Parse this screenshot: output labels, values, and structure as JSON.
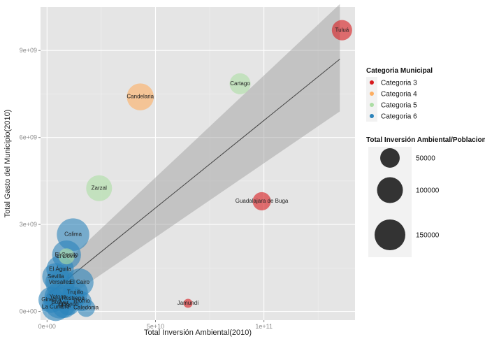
{
  "chart_data": {
    "type": "scatter",
    "xlabel": "Total Inversión Ambiental(2010)",
    "ylabel": "Total Gasto del Municipio(2010)",
    "xlim": [
      -3000000000.0,
      142000000000.0
    ],
    "ylim": [
      -300000000.0,
      10500000000.0
    ],
    "x_ticks": [
      0,
      50000000000.0,
      100000000000.0
    ],
    "x_tick_labels": [
      "0e+00",
      "5e+10",
      "1e+11"
    ],
    "y_ticks": [
      0,
      3000000000.0,
      6000000000.0,
      9000000000.0
    ],
    "y_tick_labels": [
      "0e+00",
      "3e+09",
      "6e+09",
      "9e+09"
    ],
    "grid": true,
    "color_legend": {
      "title": "Categoria Municipal",
      "entries": [
        {
          "label": "Categoria 3",
          "color": "#d7191c"
        },
        {
          "label": "Categoria 4",
          "color": "#fdae61"
        },
        {
          "label": "Categoria 5",
          "color": "#abdda4"
        },
        {
          "label": "Categoria 6",
          "color": "#2b83ba"
        }
      ]
    },
    "size_legend": {
      "title": "Total Inversión Ambiental/Poblacion",
      "entries": [
        {
          "label": "50000",
          "value": 50000
        },
        {
          "label": "100000",
          "value": 100000
        },
        {
          "label": "150000",
          "value": 150000
        }
      ]
    },
    "trend": {
      "x": [
        0,
        135000000000.0
      ],
      "y": [
        550000000.0,
        8700000000.0
      ],
      "ci_lower": [
        0,
        6900000000.0
      ],
      "ci_upper": [
        1100000000.0,
        10600000000.0
      ]
    },
    "points": [
      {
        "label": "Tuluá",
        "x": 136000000000.0,
        "y": 9700000000.0,
        "cat": 3,
        "size": 55000
      },
      {
        "label": "Cartago",
        "x": 89000000000.0,
        "y": 7850000000.0,
        "cat": 5,
        "size": 60000
      },
      {
        "label": "Candelaria",
        "x": 43000000000.0,
        "y": 7400000000.0,
        "cat": 4,
        "size": 110000
      },
      {
        "label": "Zarzal",
        "x": 24000000000.0,
        "y": 4250000000.0,
        "cat": 5,
        "size": 100000
      },
      {
        "label": "Guadalajara de Buga",
        "x": 99000000000.0,
        "y": 3800000000.0,
        "cat": 3,
        "size": 42000
      },
      {
        "label": "Jamundí",
        "x": 65000000000.0,
        "y": 280000000.0,
        "cat": 3,
        "size": 5000
      },
      {
        "label": "Calima",
        "x": 12000000000.0,
        "y": 2650000000.0,
        "cat": 6,
        "size": 170000
      },
      {
        "label": "El Cerrito",
        "x": 9000000000.0,
        "y": 1950000000.0,
        "cat": 6,
        "size": 130000
      },
      {
        "label": "El Dovio",
        "x": 9000000000.0,
        "y": 1900000000.0,
        "cat": 5,
        "size": 30000
      },
      {
        "label": "El Águila",
        "x": 6000000000.0,
        "y": 1450000000.0,
        "cat": 6,
        "size": 115000
      },
      {
        "label": "Sevilla",
        "x": 4000000000.0,
        "y": 1200000000.0,
        "cat": 6,
        "size": 110000
      },
      {
        "label": "Versalles",
        "x": 6000000000.0,
        "y": 1000000000.0,
        "cat": 6,
        "size": 135000
      },
      {
        "label": "El Cairo",
        "x": 15000000000.0,
        "y": 1000000000.0,
        "cat": 6,
        "size": 120000
      },
      {
        "label": "Trujillo",
        "x": 13000000000.0,
        "y": 650000000.0,
        "cat": 6,
        "size": 95000
      },
      {
        "label": "Yotoco",
        "x": 5000000000.0,
        "y": 500000000.0,
        "cat": 6,
        "size": 110000
      },
      {
        "label": "Restrepo",
        "x": 12000000000.0,
        "y": 450000000.0,
        "cat": 6,
        "size": 80000
      },
      {
        "label": "Ginebra",
        "x": 2000000000.0,
        "y": 400000000.0,
        "cat": 6,
        "size": 100000
      },
      {
        "label": "Riofrío",
        "x": 16000000000.0,
        "y": 350000000.0,
        "cat": 6,
        "size": 50000
      },
      {
        "label": "Obando",
        "x": 10000000000.0,
        "y": 250000000.0,
        "cat": 6,
        "size": 70000
      },
      {
        "label": "Ulloa",
        "x": 8000000000.0,
        "y": 200000000.0,
        "cat": 6,
        "size": 90000
      },
      {
        "label": "La Cumbre",
        "x": 4000000000.0,
        "y": 150000000.0,
        "cat": 6,
        "size": 120000
      },
      {
        "label": "Caledonia",
        "x": 18000000000.0,
        "y": 120000000.0,
        "cat": 6,
        "size": 40000
      },
      {
        "label": "Bolívar",
        "x": 6000000000.0,
        "y": 300000000.0,
        "cat": 6,
        "size": 160000
      }
    ]
  }
}
